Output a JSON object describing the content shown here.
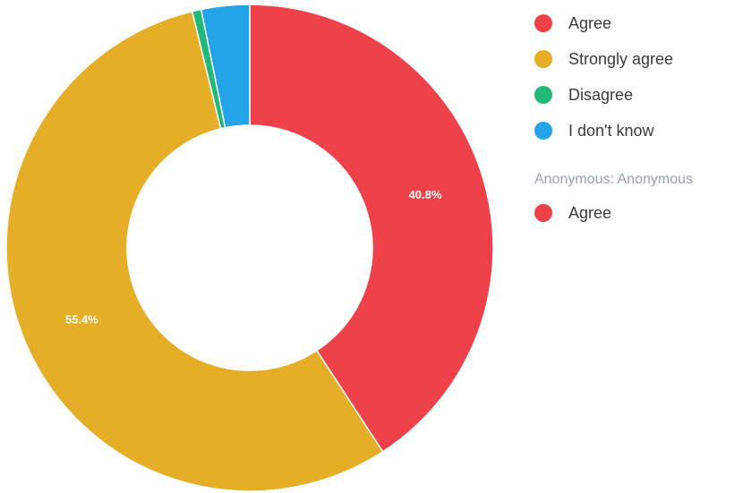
{
  "chart_data": {
    "type": "pie",
    "title": "",
    "donut": true,
    "slices": [
      {
        "label": "Agree",
        "value": 40.8,
        "color": "#ef4149",
        "value_label": "40.8%"
      },
      {
        "label": "Strongly agree",
        "value": 55.4,
        "color": "#e6ad26",
        "value_label": "55.4%"
      },
      {
        "label": "Disagree",
        "value": 0.6,
        "color": "#21b87a",
        "value_label": ""
      },
      {
        "label": "I don't know",
        "value": 3.2,
        "color": "#23a3e8",
        "value_label": ""
      }
    ],
    "legend_placement": "right"
  },
  "legend": {
    "items": [
      {
        "label": "Agree",
        "color": "#ef4149"
      },
      {
        "label": "Strongly agree",
        "color": "#e6ad26"
      },
      {
        "label": "Disagree",
        "color": "#21b87a"
      },
      {
        "label": "I don't know",
        "color": "#23a3e8"
      }
    ],
    "group_title": "Anonymous: Anonymous",
    "group_items": [
      {
        "label": "Agree",
        "color": "#ef4149"
      }
    ]
  }
}
